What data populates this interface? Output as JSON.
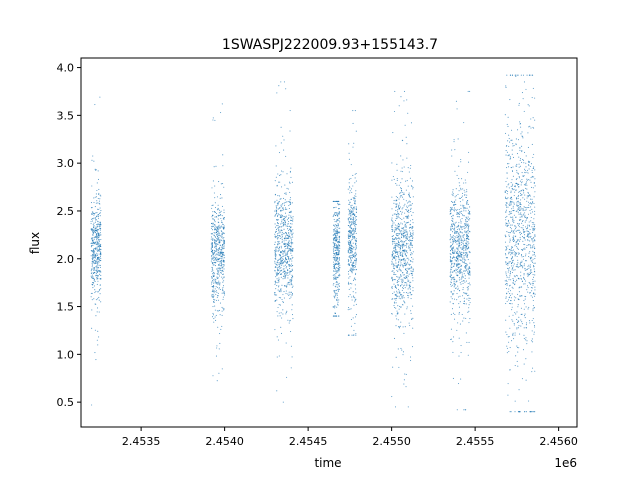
{
  "chart_data": {
    "type": "scatter",
    "title": "1SWASPJ222009.93+155143.7",
    "xlabel": "time",
    "ylabel": "flux",
    "x_offset_label": "1e6",
    "xlim": [
      2453140,
      2456110
    ],
    "ylim": [
      0.24,
      4.1
    ],
    "x_ticks": [
      2453500,
      2454000,
      2454500,
      2455000,
      2455500,
      2456000
    ],
    "x_tick_labels": [
      "2.4535",
      "2.4540",
      "2.4545",
      "2.4550",
      "2.4555",
      "2.4560"
    ],
    "y_ticks": [
      0.5,
      1.0,
      1.5,
      2.0,
      2.5,
      3.0,
      3.5,
      4.0
    ],
    "y_tick_labels": [
      "0.5",
      "1.0",
      "1.5",
      "2.0",
      "2.5",
      "3.0",
      "3.5",
      "4.0"
    ],
    "grid": false,
    "legend": false,
    "point_color": "#1f77b4",
    "clusters": [
      {
        "x_range": [
          2453200,
          2453260
        ],
        "y_center": 2.1,
        "y_core": [
          1.7,
          2.5
        ],
        "y_extent": [
          0.47,
          3.85
        ]
      },
      {
        "x_range": [
          2453920,
          2454000
        ],
        "y_center": 2.05,
        "y_core": [
          1.6,
          2.45
        ],
        "y_extent": [
          0.53,
          3.62
        ]
      },
      {
        "x_range": [
          2454300,
          2454410
        ],
        "y_center": 2.1,
        "y_core": [
          1.55,
          2.55
        ],
        "y_extent": [
          0.5,
          3.85
        ]
      },
      {
        "x_range": [
          2454650,
          2454690
        ],
        "y_center": 2.1,
        "y_core": [
          1.6,
          2.5
        ],
        "y_extent": [
          1.4,
          2.6
        ]
      },
      {
        "x_range": [
          2454740,
          2454790
        ],
        "y_center": 2.2,
        "y_core": [
          1.8,
          2.7
        ],
        "y_extent": [
          1.2,
          3.55
        ]
      },
      {
        "x_range": [
          2455000,
          2455130
        ],
        "y_center": 2.1,
        "y_core": [
          1.5,
          2.6
        ],
        "y_extent": [
          0.45,
          3.75
        ]
      },
      {
        "x_range": [
          2455350,
          2455470
        ],
        "y_center": 2.1,
        "y_core": [
          1.55,
          2.55
        ],
        "y_extent": [
          0.42,
          3.75
        ]
      },
      {
        "x_range": [
          2455680,
          2455860
        ],
        "y_center": 2.2,
        "y_core": [
          1.3,
          3.1
        ],
        "y_extent": [
          0.4,
          3.92
        ]
      }
    ]
  }
}
